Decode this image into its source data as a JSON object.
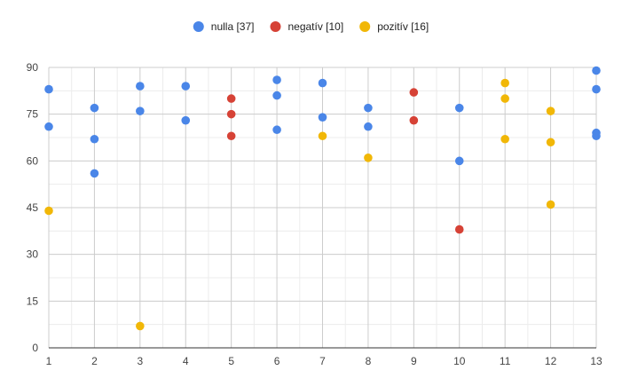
{
  "chart_data": {
    "type": "scatter",
    "title": "",
    "xlabel": "",
    "ylabel": "",
    "xlim": [
      1,
      13
    ],
    "ylim": [
      0,
      90
    ],
    "x_ticks": [
      1,
      2,
      3,
      4,
      5,
      6,
      7,
      8,
      9,
      10,
      11,
      12,
      13
    ],
    "y_ticks": [
      0,
      15,
      30,
      45,
      60,
      75,
      90
    ],
    "grid": true,
    "legend_position": "top-center",
    "series": [
      {
        "name": "nulla [37]",
        "color": "#4a86e8",
        "points": [
          [
            1,
            83
          ],
          [
            1,
            71
          ],
          [
            2,
            77
          ],
          [
            2,
            67
          ],
          [
            2,
            56
          ],
          [
            3,
            84
          ],
          [
            3,
            76
          ],
          [
            4,
            84
          ],
          [
            4,
            73
          ],
          [
            6,
            86
          ],
          [
            6,
            81
          ],
          [
            6,
            70
          ],
          [
            7,
            85
          ],
          [
            7,
            74
          ],
          [
            8,
            77
          ],
          [
            8,
            71
          ],
          [
            10,
            77
          ],
          [
            10,
            60
          ],
          [
            13,
            89
          ],
          [
            13,
            83
          ],
          [
            13,
            69
          ],
          [
            13,
            68
          ]
        ]
      },
      {
        "name": "negatív [10]",
        "color": "#d64236",
        "points": [
          [
            5,
            80
          ],
          [
            5,
            75
          ],
          [
            5,
            68
          ],
          [
            9,
            82
          ],
          [
            9,
            73
          ],
          [
            10,
            38
          ]
        ]
      },
      {
        "name": "pozitív [16]",
        "color": "#f1b707",
        "points": [
          [
            1,
            44
          ],
          [
            3,
            7
          ],
          [
            7,
            68
          ],
          [
            8,
            61
          ],
          [
            11,
            85
          ],
          [
            11,
            80
          ],
          [
            11,
            67
          ],
          [
            12,
            76
          ],
          [
            12,
            66
          ],
          [
            12,
            46
          ]
        ]
      }
    ]
  }
}
